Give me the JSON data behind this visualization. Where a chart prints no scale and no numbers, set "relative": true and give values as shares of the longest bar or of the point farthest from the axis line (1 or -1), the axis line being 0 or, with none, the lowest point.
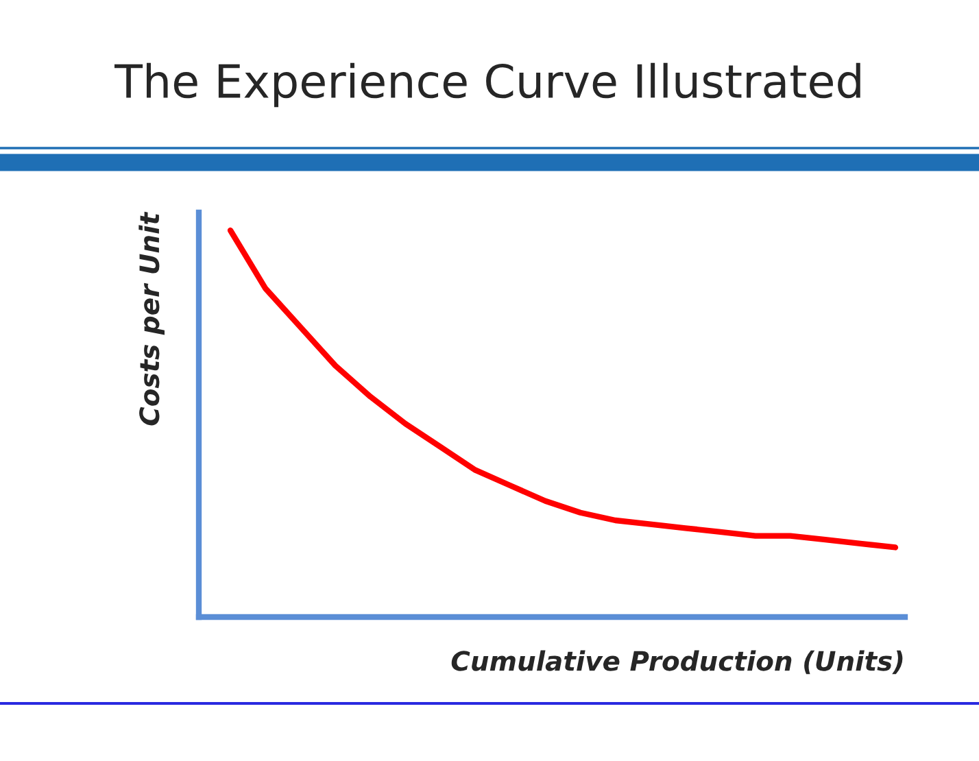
{
  "chart_data": {
    "type": "line",
    "title": "The Experience Curve Illustrated",
    "xlabel": "Cumulative Production (Units)",
    "ylabel": "Costs per Unit",
    "relative": true,
    "categories": [
      null,
      null,
      null,
      null,
      null,
      null,
      null,
      null,
      null,
      null,
      null,
      null,
      null,
      null,
      null,
      null,
      null,
      null,
      null,
      null
    ],
    "series": [
      {
        "color": "#ff0000",
        "values": [
          1.0,
          0.85,
          0.75,
          0.65,
          0.57,
          0.5,
          0.44,
          0.38,
          0.34,
          0.3,
          0.27,
          0.25,
          0.24,
          0.23,
          0.22,
          0.21,
          0.21,
          0.2,
          0.19,
          0.18
        ]
      }
    ],
    "grid": false,
    "legend": false,
    "marker": "none",
    "line_style": "solid"
  }
}
